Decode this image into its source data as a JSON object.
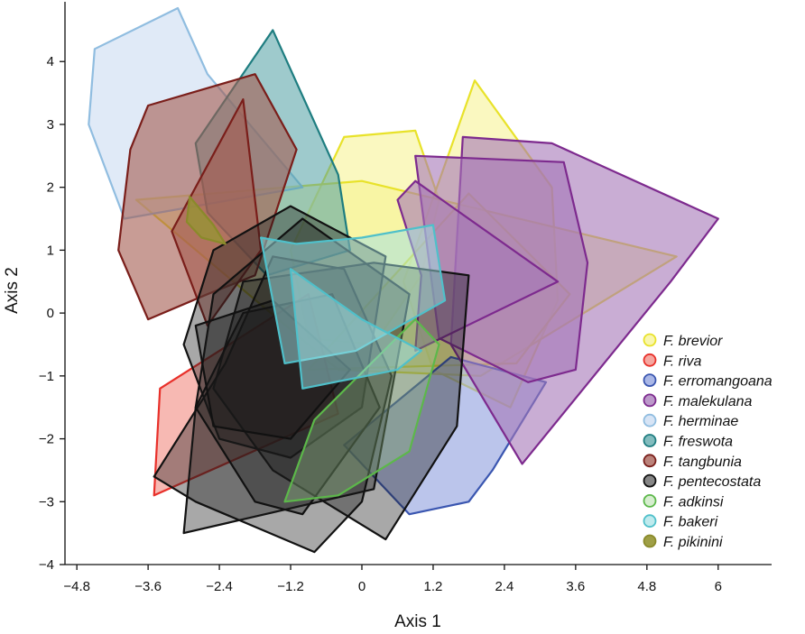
{
  "chart_data": {
    "type": "scatter",
    "subtype": "convex-hull polygons",
    "xlabel": "Axis 1",
    "ylabel": "Axis 2",
    "xlim": [
      -5.0,
      6.9
    ],
    "ylim": [
      -4.0,
      4.95
    ],
    "xticks": [
      -4.8,
      -3.6,
      -2.4,
      -1.2,
      0,
      1.2,
      2.4,
      3.6,
      4.8,
      6
    ],
    "xtick_labels": [
      "−4.8",
      "−3.6",
      "−2.4",
      "−1.2",
      "0",
      "1.2",
      "2.4",
      "3.6",
      "4.8",
      "6"
    ],
    "yticks": [
      -4,
      -3,
      -2,
      -1,
      0,
      1,
      2,
      3,
      4
    ],
    "ytick_labels": [
      "−4",
      "−3",
      "−2",
      "−1",
      "0",
      "1",
      "2",
      "3",
      "4"
    ],
    "grid": false,
    "legend_position": "bottom-right",
    "series": [
      {
        "name": "F. brevior",
        "stroke": "#e8e22a",
        "fill": "#f6f28c",
        "fill_opacity": 0.55,
        "hulls": [
          [
            [
              -0.6,
              2.2
            ],
            [
              -0.3,
              2.8
            ],
            [
              0.9,
              2.9
            ],
            [
              1.3,
              1.8
            ],
            [
              1.0,
              0.6
            ],
            [
              0.2,
              -0.5
            ],
            [
              -0.9,
              -0.4
            ],
            [
              -1.2,
              1.0
            ]
          ],
          [
            [
              1.9,
              3.7
            ],
            [
              3.2,
              2.0
            ],
            [
              3.3,
              0.2
            ],
            [
              2.5,
              -1.5
            ],
            [
              1.2,
              -0.9
            ],
            [
              0.7,
              0.5
            ]
          ],
          [
            [
              -3.8,
              1.8
            ],
            [
              0.0,
              2.1
            ],
            [
              5.3,
              0.9
            ],
            [
              2.0,
              -1.0
            ],
            [
              -0.4,
              -0.9
            ]
          ],
          [
            [
              1.8,
              1.9
            ],
            [
              3.5,
              0.3
            ],
            [
              2.6,
              -0.8
            ],
            [
              -0.9,
              -0.9
            ]
          ]
        ]
      },
      {
        "name": "F. riva",
        "stroke": "#e8302a",
        "fill": "#f28a80",
        "fill_opacity": 0.6,
        "hulls": [
          [
            [
              -0.9,
              0.3
            ],
            [
              -0.4,
              -1.6
            ],
            [
              -3.5,
              -2.9
            ],
            [
              -3.4,
              -1.2
            ]
          ]
        ]
      },
      {
        "name": "F. erromangoana",
        "stroke": "#3a56b0",
        "fill": "#8e9fdd",
        "fill_opacity": 0.6,
        "hulls": [
          [
            [
              3.1,
              -1.1
            ],
            [
              2.2,
              -2.5
            ],
            [
              1.8,
              -3.0
            ],
            [
              0.8,
              -3.2
            ],
            [
              -0.3,
              -2.1
            ],
            [
              1.5,
              -0.7
            ]
          ]
        ]
      },
      {
        "name": "F. malekulana",
        "stroke": "#7d2a8e",
        "fill": "#a577b8",
        "fill_opacity": 0.6,
        "hulls": [
          [
            [
              1.7,
              2.8
            ],
            [
              3.2,
              2.7
            ],
            [
              6.0,
              1.5
            ],
            [
              5.2,
              0.5
            ],
            [
              2.7,
              -2.4
            ],
            [
              1.5,
              -0.5
            ]
          ],
          [
            [
              0.9,
              2.5
            ],
            [
              3.4,
              2.4
            ],
            [
              3.8,
              0.8
            ],
            [
              3.6,
              -0.9
            ],
            [
              2.8,
              -1.1
            ],
            [
              1.3,
              -0.4
            ]
          ],
          [
            [
              0.6,
              1.8
            ],
            [
              0.9,
              2.1
            ],
            [
              3.3,
              0.5
            ],
            [
              0.9,
              -0.6
            ],
            [
              1.0,
              0.6
            ]
          ]
        ]
      },
      {
        "name": "F. herminae",
        "stroke": "#90bde0",
        "fill": "#c6d9f1",
        "fill_opacity": 0.55,
        "hulls": [
          [
            [
              -4.5,
              4.2
            ],
            [
              -3.1,
              4.85
            ],
            [
              -2.6,
              3.8
            ],
            [
              -1.0,
              2.0
            ],
            [
              -4.0,
              1.5
            ],
            [
              -4.6,
              3.0
            ]
          ]
        ]
      },
      {
        "name": "F. freswota",
        "stroke": "#1e7d80",
        "fill": "#4f9fa2",
        "fill_opacity": 0.55,
        "hulls": [
          [
            [
              -1.5,
              4.5
            ],
            [
              -0.4,
              2.2
            ],
            [
              -0.2,
              1.0
            ],
            [
              -1.6,
              0.6
            ],
            [
              -2.6,
              1.6
            ],
            [
              -2.8,
              2.7
            ]
          ]
        ]
      },
      {
        "name": "F. tangbunia",
        "stroke": "#7a1e1a",
        "fill": "#a45a4f",
        "fill_opacity": 0.6,
        "hulls": [
          [
            [
              -3.6,
              3.3
            ],
            [
              -1.8,
              3.8
            ],
            [
              -1.1,
              2.6
            ],
            [
              -1.8,
              0.6
            ],
            [
              -2.6,
              0.3
            ],
            [
              -3.6,
              -0.1
            ],
            [
              -4.1,
              1.0
            ],
            [
              -3.9,
              2.6
            ]
          ],
          [
            [
              -2.0,
              3.4
            ],
            [
              -1.7,
              1.0
            ],
            [
              -2.6,
              -0.2
            ],
            [
              -3.2,
              1.3
            ]
          ]
        ]
      },
      {
        "name": "F. pentecostata",
        "stroke": "#111111",
        "fill": "#1a1a1a",
        "fill_opacity": 0.38,
        "hulls": [
          [
            [
              -2.5,
              1.0
            ],
            [
              -1.2,
              1.7
            ],
            [
              0.4,
              0.9
            ],
            [
              0.0,
              -1.5
            ],
            [
              -1.2,
              -2.3
            ],
            [
              -2.4,
              -2.0
            ],
            [
              -3.0,
              -0.5
            ]
          ],
          [
            [
              -2.0,
              0.5
            ],
            [
              0.2,
              0.8
            ],
            [
              1.8,
              0.6
            ],
            [
              1.6,
              -1.8
            ],
            [
              0.4,
              -3.6
            ],
            [
              -1.5,
              -2.5
            ],
            [
              -2.5,
              -1.2
            ]
          ],
          [
            [
              -2.5,
              0.3
            ],
            [
              -1.0,
              1.5
            ],
            [
              0.8,
              0.3
            ],
            [
              0.2,
              -2.8
            ],
            [
              -3.0,
              -3.5
            ],
            [
              -2.8,
              -1.5
            ]
          ],
          [
            [
              -1.5,
              0.9
            ],
            [
              -0.3,
              0.7
            ],
            [
              0.5,
              -1.0
            ],
            [
              0.0,
              -3.0
            ],
            [
              -0.8,
              -3.8
            ],
            [
              -2.8,
              -3.0
            ],
            [
              -3.5,
              -2.6
            ],
            [
              -2.3,
              -0.8
            ]
          ],
          [
            [
              -2.0,
              0.0
            ],
            [
              -0.5,
              0.3
            ],
            [
              0.3,
              -1.5
            ],
            [
              -1.0,
              -3.2
            ],
            [
              -1.8,
              -3.0
            ],
            [
              -2.8,
              -1.5
            ]
          ],
          [
            [
              -2.8,
              -0.2
            ],
            [
              -1.5,
              0.2
            ],
            [
              -0.2,
              -0.9
            ],
            [
              -1.2,
              -2.0
            ],
            [
              -2.5,
              -1.8
            ]
          ]
        ]
      },
      {
        "name": "F. adkinsi",
        "stroke": "#5cb84a",
        "fill": "#a3d694",
        "fill_opacity": 0.3,
        "hulls": [
          [
            [
              1.3,
              -0.5
            ],
            [
              0.8,
              -2.2
            ],
            [
              -0.4,
              -2.9
            ],
            [
              -1.3,
              -3.0
            ],
            [
              -0.8,
              -1.7
            ],
            [
              0.9,
              -0.1
            ]
          ]
        ]
      },
      {
        "name": "F. bakeri",
        "stroke": "#4fc0ca",
        "fill": "#9ddfe4",
        "fill_opacity": 0.5,
        "hulls": [
          [
            [
              -1.1,
              1.1
            ],
            [
              0.0,
              1.2
            ],
            [
              1.2,
              1.4
            ],
            [
              1.4,
              0.2
            ],
            [
              -0.1,
              -0.6
            ],
            [
              -1.3,
              -0.8
            ],
            [
              -1.7,
              1.2
            ]
          ],
          [
            [
              -1.2,
              0.7
            ],
            [
              0.0,
              -0.1
            ],
            [
              1.0,
              -0.6
            ],
            [
              0.6,
              -0.9
            ],
            [
              -1.0,
              -1.2
            ]
          ]
        ]
      },
      {
        "name": "F. pikinini",
        "stroke": "#8a8a2a",
        "fill": "#959532",
        "fill_opacity": 0.75,
        "hulls": [
          [
            [
              -2.9,
              1.85
            ],
            [
              -2.5,
              1.4
            ],
            [
              -2.3,
              1.1
            ],
            [
              -2.7,
              1.2
            ],
            [
              -2.95,
              1.45
            ]
          ]
        ]
      }
    ]
  }
}
